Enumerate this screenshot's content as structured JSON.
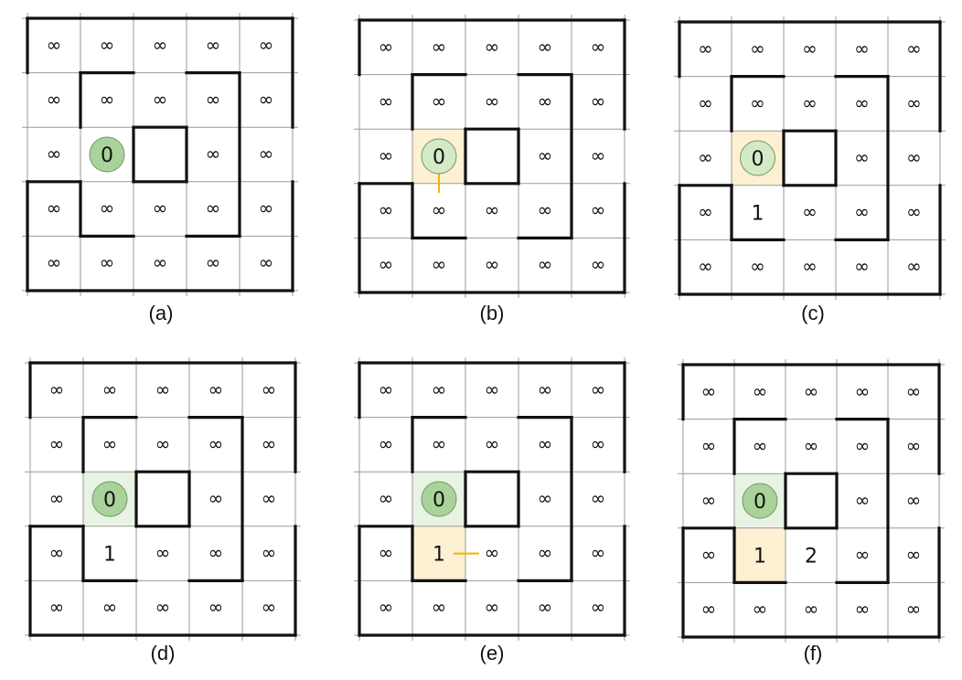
{
  "diagram": {
    "grid_rows": 5,
    "grid_cols": 5,
    "infinity_symbol": "∞",
    "colors": {
      "source_cell": "#e9f3e4",
      "source_circle": "#a9d39a",
      "source_circle_active": "#d4e9c6",
      "source_cell_active": "#fdf0d3",
      "frontier_cell": "#fdf0d3",
      "edge_arrow": "#f0b400",
      "wall": "#111111",
      "gridline": "#9a9a9a"
    },
    "panels": [
      {
        "caption": "(a)",
        "values": [
          [
            "∞",
            "∞",
            "∞",
            "∞",
            "∞"
          ],
          [
            "∞",
            "∞",
            "∞",
            "∞",
            "∞"
          ],
          [
            "∞",
            "0",
            "",
            "∞",
            "∞"
          ],
          [
            "∞",
            "∞",
            "∞",
            "∞",
            "∞"
          ],
          [
            "∞",
            "∞",
            "∞",
            "∞",
            "∞"
          ]
        ],
        "source_state": "plain",
        "highlight": [],
        "edge": null
      },
      {
        "caption": "(b)",
        "values": [
          [
            "∞",
            "∞",
            "∞",
            "∞",
            "∞"
          ],
          [
            "∞",
            "∞",
            "∞",
            "∞",
            "∞"
          ],
          [
            "∞",
            "0",
            "",
            "∞",
            "∞"
          ],
          [
            "∞",
            "∞",
            "∞",
            "∞",
            "∞"
          ],
          [
            "∞",
            "∞",
            "∞",
            "∞",
            "∞"
          ]
        ],
        "source_state": "active",
        "highlight": [],
        "edge": {
          "from": [
            2,
            1
          ],
          "to": [
            3,
            1
          ]
        }
      },
      {
        "caption": "(c)",
        "values": [
          [
            "∞",
            "∞",
            "∞",
            "∞",
            "∞"
          ],
          [
            "∞",
            "∞",
            "∞",
            "∞",
            "∞"
          ],
          [
            "∞",
            "0",
            "",
            "∞",
            "∞"
          ],
          [
            "∞",
            "1",
            "∞",
            "∞",
            "∞"
          ],
          [
            "∞",
            "∞",
            "∞",
            "∞",
            "∞"
          ]
        ],
        "source_state": "active",
        "highlight": [],
        "edge": null
      },
      {
        "caption": "(d)",
        "values": [
          [
            "∞",
            "∞",
            "∞",
            "∞",
            "∞"
          ],
          [
            "∞",
            "∞",
            "∞",
            "∞",
            "∞"
          ],
          [
            "∞",
            "0",
            "",
            "∞",
            "∞"
          ],
          [
            "∞",
            "1",
            "∞",
            "∞",
            "∞"
          ],
          [
            "∞",
            "∞",
            "∞",
            "∞",
            "∞"
          ]
        ],
        "source_state": "visited",
        "highlight": [],
        "edge": null
      },
      {
        "caption": "(e)",
        "values": [
          [
            "∞",
            "∞",
            "∞",
            "∞",
            "∞"
          ],
          [
            "∞",
            "∞",
            "∞",
            "∞",
            "∞"
          ],
          [
            "∞",
            "0",
            "",
            "∞",
            "∞"
          ],
          [
            "∞",
            "1",
            "∞",
            "∞",
            "∞"
          ],
          [
            "∞",
            "∞",
            "∞",
            "∞",
            "∞"
          ]
        ],
        "source_state": "visited",
        "highlight": [
          [
            3,
            1
          ]
        ],
        "edge": {
          "from": [
            3,
            1
          ],
          "to": [
            3,
            2
          ]
        }
      },
      {
        "caption": "(f)",
        "values": [
          [
            "∞",
            "∞",
            "∞",
            "∞",
            "∞"
          ],
          [
            "∞",
            "∞",
            "∞",
            "∞",
            "∞"
          ],
          [
            "∞",
            "0",
            "",
            "∞",
            "∞"
          ],
          [
            "∞",
            "1",
            "2",
            "∞",
            "∞"
          ],
          [
            "∞",
            "∞",
            "∞",
            "∞",
            "∞"
          ]
        ],
        "source_state": "visited",
        "highlight": [
          [
            3,
            1
          ]
        ],
        "edge": null
      }
    ]
  }
}
